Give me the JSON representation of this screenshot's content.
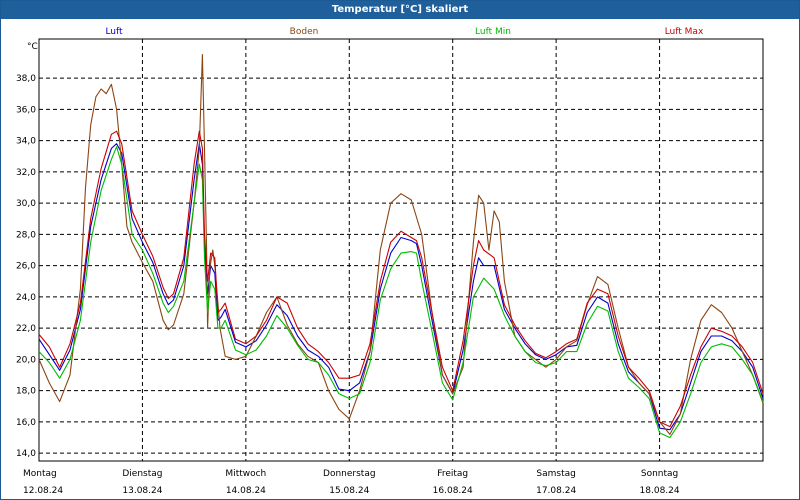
{
  "chart_data": {
    "type": "line",
    "title": "Temperatur [°C] skaliert",
    "ylabel": "°C",
    "ylim": [
      13.5,
      40.5
    ],
    "xlim": [
      0,
      7
    ],
    "grid": true,
    "yticks": [
      14.0,
      16.0,
      18.0,
      20.0,
      22.0,
      24.0,
      26.0,
      28.0,
      30.0,
      32.0,
      34.0,
      36.0,
      38.0
    ],
    "ytick_labels": [
      "14,0",
      "16,0",
      "18,0",
      "20,0",
      "22,0",
      "24,0",
      "26,0",
      "28,0",
      "30,0",
      "32,0",
      "34,0",
      "36,0",
      "38,0"
    ],
    "x_days": [
      {
        "day": "Montag",
        "date": "12.08.24"
      },
      {
        "day": "Dienstag",
        "date": "13.08.24"
      },
      {
        "day": "Mittwoch",
        "date": "14.08.24"
      },
      {
        "day": "Donnerstag",
        "date": "15.08.24"
      },
      {
        "day": "Freitag",
        "date": "16.08.24"
      },
      {
        "day": "Samstag",
        "date": "17.08.24"
      },
      {
        "day": "Sonntag",
        "date": "18.08.24"
      }
    ],
    "series": [
      {
        "name": "Luft",
        "color": "#0000cc",
        "x": [
          0,
          0.08,
          0.2,
          0.3,
          0.4,
          0.5,
          0.6,
          0.7,
          0.75,
          0.8,
          0.9,
          1.0,
          1.1,
          1.2,
          1.25,
          1.3,
          1.4,
          1.5,
          1.55,
          1.58,
          1.6,
          1.63,
          1.66,
          1.7,
          1.73,
          1.76,
          1.8,
          1.9,
          2.0,
          2.1,
          2.2,
          2.3,
          2.4,
          2.5,
          2.6,
          2.7,
          2.8,
          2.9,
          3.0,
          3.1,
          3.2,
          3.3,
          3.4,
          3.5,
          3.6,
          3.65,
          3.7,
          3.8,
          3.9,
          4.0,
          4.1,
          4.2,
          4.25,
          4.3,
          4.4,
          4.5,
          4.6,
          4.7,
          4.8,
          4.9,
          5.0,
          5.1,
          5.2,
          5.3,
          5.4,
          5.5,
          5.6,
          5.7,
          5.8,
          5.9,
          6.0,
          6.1,
          6.2,
          6.3,
          6.4,
          6.5,
          6.6,
          6.7,
          6.8,
          6.9,
          7.0
        ],
        "y": [
          21.3,
          20.5,
          19.3,
          20.6,
          23.2,
          28.5,
          31.5,
          33.5,
          33.8,
          33.2,
          29.0,
          27.5,
          26.2,
          24.2,
          23.5,
          23.8,
          26.0,
          31.5,
          33.8,
          32.5,
          27.2,
          24.2,
          26.0,
          25.5,
          22.5,
          22.7,
          23.2,
          21.1,
          20.8,
          21.2,
          22.2,
          23.5,
          22.8,
          21.5,
          20.6,
          20.2,
          19.5,
          18.1,
          18.0,
          18.5,
          20.5,
          24.5,
          26.8,
          27.8,
          27.6,
          27.4,
          26.0,
          22.5,
          19.0,
          17.8,
          20.6,
          25.0,
          26.5,
          26.0,
          26.0,
          23.2,
          22.0,
          21.0,
          20.3,
          20.0,
          20.3,
          20.8,
          20.9,
          23.0,
          24.0,
          23.6,
          21.0,
          19.2,
          18.5,
          17.8,
          15.6,
          15.5,
          16.5,
          18.5,
          20.5,
          21.5,
          21.5,
          21.2,
          20.5,
          19.5,
          17.5
        ]
      },
      {
        "name": "Boden",
        "color": "#8b4513",
        "x": [
          0,
          0.1,
          0.2,
          0.3,
          0.4,
          0.45,
          0.5,
          0.55,
          0.6,
          0.65,
          0.7,
          0.75,
          0.8,
          0.85,
          0.9,
          1.0,
          1.1,
          1.2,
          1.25,
          1.3,
          1.4,
          1.5,
          1.55,
          1.58,
          1.6,
          1.62,
          1.63,
          1.65,
          1.68,
          1.7,
          1.75,
          1.8,
          1.9,
          2.0,
          2.1,
          2.2,
          2.3,
          2.4,
          2.5,
          2.6,
          2.7,
          2.8,
          2.9,
          3.0,
          3.1,
          3.2,
          3.3,
          3.4,
          3.5,
          3.6,
          3.7,
          3.8,
          3.9,
          4.0,
          4.1,
          4.2,
          4.25,
          4.3,
          4.35,
          4.4,
          4.45,
          4.5,
          4.6,
          4.7,
          4.8,
          4.9,
          5.0,
          5.1,
          5.2,
          5.3,
          5.4,
          5.5,
          5.6,
          5.7,
          5.8,
          5.9,
          6.0,
          6.1,
          6.2,
          6.3,
          6.4,
          6.5,
          6.6,
          6.7,
          6.8,
          6.9,
          7.0
        ],
        "y": [
          20.0,
          18.5,
          17.3,
          19.0,
          24.5,
          31.0,
          35.0,
          36.8,
          37.3,
          37.0,
          37.6,
          36.0,
          32.5,
          28.5,
          27.5,
          26.2,
          25.0,
          22.5,
          21.9,
          22.2,
          24.2,
          30.0,
          33.5,
          39.5,
          33.5,
          27.0,
          22.0,
          25.8,
          27.0,
          26.0,
          22.0,
          20.2,
          20.0,
          20.2,
          21.5,
          23.0,
          24.0,
          22.2,
          21.0,
          20.2,
          19.8,
          18.0,
          16.8,
          16.2,
          18.0,
          20.5,
          27.0,
          30.0,
          30.6,
          30.2,
          28.0,
          23.0,
          19.0,
          17.8,
          19.5,
          27.5,
          30.5,
          30.0,
          27.0,
          29.5,
          28.8,
          25.0,
          21.5,
          20.5,
          20.0,
          19.5,
          20.0,
          20.8,
          21.2,
          23.5,
          25.3,
          24.8,
          22.0,
          19.5,
          18.5,
          17.8,
          16.0,
          15.2,
          16.5,
          20.0,
          22.5,
          23.5,
          23.0,
          22.0,
          20.5,
          19.0,
          17.2
        ]
      },
      {
        "name": "Luft Min",
        "color": "#00bb00",
        "x": [
          0,
          0.1,
          0.2,
          0.3,
          0.4,
          0.5,
          0.6,
          0.7,
          0.75,
          0.8,
          0.9,
          1.0,
          1.1,
          1.2,
          1.25,
          1.3,
          1.4,
          1.5,
          1.55,
          1.58,
          1.6,
          1.63,
          1.66,
          1.7,
          1.73,
          1.76,
          1.8,
          1.9,
          2.0,
          2.1,
          2.2,
          2.3,
          2.4,
          2.5,
          2.6,
          2.7,
          2.8,
          2.9,
          3.0,
          3.1,
          3.2,
          3.3,
          3.4,
          3.5,
          3.6,
          3.65,
          3.7,
          3.8,
          3.9,
          4.0,
          4.1,
          4.2,
          4.25,
          4.3,
          4.4,
          4.5,
          4.6,
          4.7,
          4.8,
          4.9,
          5.0,
          5.1,
          5.2,
          5.3,
          5.4,
          5.5,
          5.6,
          5.7,
          5.8,
          5.9,
          6.0,
          6.1,
          6.2,
          6.3,
          6.4,
          6.5,
          6.6,
          6.7,
          6.8,
          6.9,
          7.0
        ],
        "y": [
          20.5,
          19.8,
          18.8,
          20.0,
          22.5,
          27.5,
          30.8,
          32.8,
          33.6,
          32.5,
          28.0,
          27.0,
          25.5,
          23.6,
          23.0,
          23.4,
          25.0,
          30.0,
          32.5,
          31.5,
          26.5,
          23.0,
          25.0,
          24.5,
          22.0,
          22.0,
          22.5,
          20.6,
          20.3,
          20.6,
          21.5,
          22.8,
          22.0,
          20.9,
          20.0,
          19.8,
          19.0,
          17.8,
          17.5,
          17.8,
          19.8,
          23.8,
          25.8,
          26.8,
          26.9,
          26.8,
          25.0,
          21.8,
          18.5,
          17.4,
          19.8,
          24.0,
          24.6,
          25.2,
          24.5,
          22.8,
          21.5,
          20.5,
          19.8,
          19.6,
          19.8,
          20.5,
          20.5,
          22.3,
          23.4,
          23.1,
          20.5,
          18.8,
          18.2,
          17.5,
          15.3,
          15.0,
          16.0,
          17.8,
          19.8,
          20.8,
          21.0,
          20.8,
          20.0,
          19.0,
          17.3
        ]
      },
      {
        "name": "Luft Max",
        "color": "#cc0000",
        "x": [
          0,
          0.1,
          0.2,
          0.3,
          0.4,
          0.5,
          0.6,
          0.7,
          0.75,
          0.8,
          0.9,
          1.0,
          1.1,
          1.2,
          1.25,
          1.3,
          1.4,
          1.5,
          1.55,
          1.58,
          1.6,
          1.63,
          1.66,
          1.7,
          1.73,
          1.76,
          1.8,
          1.9,
          2.0,
          2.1,
          2.2,
          2.3,
          2.4,
          2.5,
          2.6,
          2.7,
          2.8,
          2.9,
          3.0,
          3.1,
          3.2,
          3.3,
          3.4,
          3.5,
          3.6,
          3.65,
          3.7,
          3.8,
          3.9,
          4.0,
          4.1,
          4.2,
          4.25,
          4.3,
          4.4,
          4.5,
          4.6,
          4.7,
          4.8,
          4.9,
          5.0,
          5.1,
          5.2,
          5.3,
          5.4,
          5.5,
          5.6,
          5.7,
          5.8,
          5.9,
          6.0,
          6.1,
          6.2,
          6.3,
          6.4,
          6.5,
          6.6,
          6.7,
          6.8,
          6.9,
          7.0
        ],
        "y": [
          21.6,
          20.8,
          19.5,
          21.0,
          23.6,
          29.0,
          32.2,
          34.4,
          34.6,
          33.8,
          29.5,
          28.0,
          26.6,
          24.6,
          23.9,
          24.2,
          26.5,
          32.5,
          34.6,
          33.5,
          28.0,
          25.0,
          26.8,
          26.5,
          23.0,
          23.2,
          23.6,
          21.3,
          21.0,
          21.5,
          22.5,
          24.0,
          23.6,
          22.0,
          21.0,
          20.5,
          19.8,
          18.8,
          18.8,
          19.0,
          21.0,
          25.0,
          27.5,
          28.2,
          27.8,
          27.6,
          26.5,
          23.0,
          19.5,
          18.0,
          21.2,
          26.0,
          27.6,
          27.0,
          26.5,
          23.5,
          22.2,
          21.2,
          20.4,
          20.1,
          20.5,
          21.0,
          21.3,
          23.6,
          24.5,
          24.2,
          21.5,
          19.5,
          18.8,
          18.0,
          16.0,
          15.7,
          17.0,
          19.0,
          20.8,
          22.0,
          21.8,
          21.5,
          20.8,
          19.8,
          17.8
        ]
      }
    ]
  }
}
